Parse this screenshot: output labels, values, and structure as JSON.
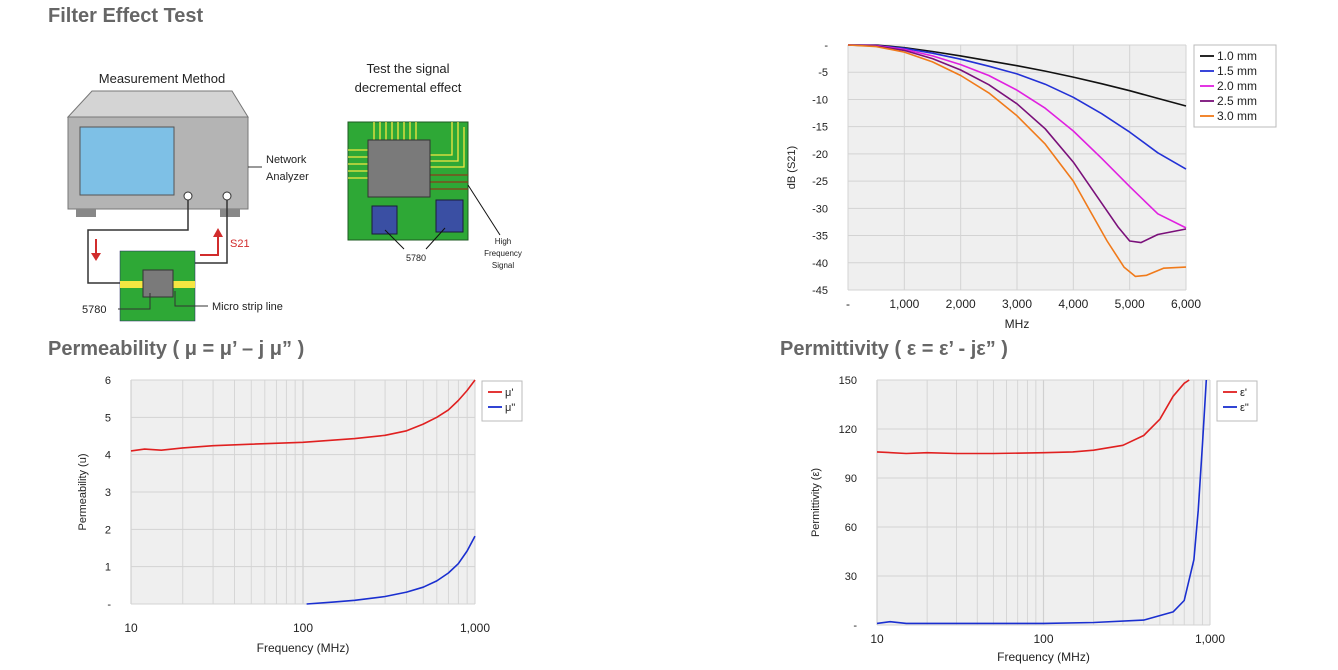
{
  "page": {
    "title": "Filter Effect Test",
    "permeability_title": "Permeability ( μ = μ’ – j μ” )",
    "permittivity_title": "Permittivity ( ε = ε’ - jε” )"
  },
  "diagram": {
    "measurement_label": "Measurement Method",
    "analyzer_label_1": "Network",
    "analyzer_label_2": "Analyzer",
    "s21_label": "S21",
    "part_label": "5780",
    "microstrip_label": "Micro strip line",
    "test_title_1": "Test the signal",
    "test_title_2": "decremental effect",
    "pcb_part_label": "5780",
    "hf_label_1": "High",
    "hf_label_2": "Frequency",
    "hf_label_3": "Signal",
    "colors": {
      "pcb": "#2ea836",
      "trace": "#f5e642",
      "chip": "#7a7a7a",
      "part": "#3a4fa3",
      "arrow": "#d12c2c",
      "screen": "#7ec0e6",
      "case": "#b4b4b4"
    }
  },
  "chart_data": [
    {
      "type": "line",
      "xlabel": "MHz",
      "ylabel": "dB (S21)",
      "xlim": [
        0,
        6000
      ],
      "ylim": [
        -45,
        0
      ],
      "x_ticks": [
        "-",
        "1,000",
        "2,000",
        "3,000",
        "4,000",
        "5,000",
        "6,000"
      ],
      "y_ticks": [
        "-",
        "-5",
        "-10",
        "-15",
        "-20",
        "-25",
        "-30",
        "-35",
        "-40",
        "-45"
      ],
      "grid": true,
      "legend": "top-right",
      "series": [
        {
          "name": "1.0 mm",
          "color": "#111111",
          "x": [
            0,
            500,
            1000,
            1500,
            2000,
            2500,
            3000,
            3500,
            4000,
            4500,
            5000,
            5500,
            6000
          ],
          "y": [
            0,
            0,
            -0.5,
            -1.2,
            -2.0,
            -2.9,
            -3.8,
            -4.8,
            -5.9,
            -7.1,
            -8.4,
            -9.8,
            -11.2
          ]
        },
        {
          "name": "1.5 mm",
          "color": "#2331d6",
          "x": [
            0,
            500,
            1000,
            1500,
            2000,
            2500,
            3000,
            3500,
            4000,
            4500,
            5000,
            5500,
            6000
          ],
          "y": [
            0,
            -0.1,
            -0.6,
            -1.5,
            -2.6,
            -3.9,
            -5.3,
            -7.2,
            -9.6,
            -12.6,
            -16.0,
            -19.8,
            -22.8
          ]
        },
        {
          "name": "2.0 mm",
          "color": "#e020e0",
          "x": [
            0,
            500,
            1000,
            1500,
            2000,
            2500,
            3000,
            3500,
            4000,
            4500,
            5000,
            5500,
            6000
          ],
          "y": [
            0,
            -0.1,
            -0.8,
            -2.0,
            -3.6,
            -5.6,
            -8.3,
            -11.6,
            -15.8,
            -20.8,
            -26.0,
            -31.0,
            -33.6
          ]
        },
        {
          "name": "2.5 mm",
          "color": "#7a107a",
          "x": [
            0,
            500,
            1000,
            1500,
            2000,
            2500,
            3000,
            3500,
            4000,
            4500,
            4800,
            5000,
            5200,
            5500,
            6000
          ],
          "y": [
            0,
            -0.2,
            -1.0,
            -2.5,
            -4.6,
            -7.3,
            -10.8,
            -15.4,
            -21.5,
            -29.0,
            -33.5,
            -36.0,
            -36.3,
            -34.8,
            -33.8
          ]
        },
        {
          "name": "3.0 mm",
          "color": "#f07a1a",
          "x": [
            0,
            500,
            1000,
            1500,
            2000,
            2500,
            3000,
            3500,
            4000,
            4300,
            4600,
            4900,
            5100,
            5300,
            5600,
            6000
          ],
          "y": [
            0,
            -0.3,
            -1.3,
            -3.1,
            -5.6,
            -8.8,
            -13.0,
            -18.2,
            -25.0,
            -30.5,
            -36.0,
            -40.8,
            -42.5,
            -42.3,
            -41.0,
            -40.8
          ]
        }
      ]
    },
    {
      "type": "line",
      "xlabel": "Frequency (MHz)",
      "ylabel": "Permeability (u)",
      "x_scale": "log",
      "xlim": [
        10,
        1000
      ],
      "ylim": [
        0,
        6
      ],
      "x_ticks": [
        "10",
        "100",
        "1,000"
      ],
      "y_ticks": [
        "6",
        "5",
        "4",
        "3",
        "2",
        "1",
        "-"
      ],
      "grid": true,
      "legend": "top-right",
      "series": [
        {
          "name": "μ'",
          "color": "#e02020",
          "x": [
            10,
            12,
            15,
            20,
            30,
            50,
            100,
            200,
            300,
            400,
            500,
            600,
            700,
            800,
            900,
            1000
          ],
          "y": [
            4.1,
            4.15,
            4.12,
            4.18,
            4.24,
            4.28,
            4.33,
            4.43,
            4.52,
            4.64,
            4.82,
            5.0,
            5.2,
            5.45,
            5.72,
            6.0
          ]
        },
        {
          "name": "μ\"",
          "color": "#1a2fd0",
          "x": [
            105,
            150,
            200,
            300,
            400,
            500,
            600,
            700,
            800,
            900,
            1000
          ],
          "y": [
            0,
            0.05,
            0.1,
            0.2,
            0.32,
            0.45,
            0.62,
            0.83,
            1.08,
            1.42,
            1.82
          ]
        }
      ]
    },
    {
      "type": "line",
      "xlabel": "Frequency (MHz)",
      "ylabel": "Permittivity (ε)",
      "x_scale": "log",
      "xlim": [
        10,
        1000
      ],
      "ylim": [
        0,
        150
      ],
      "x_ticks": [
        "10",
        "100",
        "1,000"
      ],
      "y_ticks": [
        "150",
        "120",
        "90",
        "60",
        "30",
        "-"
      ],
      "grid": true,
      "legend": "top-right",
      "series": [
        {
          "name": "ε'",
          "color": "#e02020",
          "x": [
            10,
            15,
            20,
            30,
            50,
            100,
            150,
            200,
            300,
            400,
            500,
            600,
            700,
            750
          ],
          "y": [
            106,
            105,
            105.5,
            105,
            105,
            105.5,
            106,
            107,
            110,
            116,
            126,
            140,
            148,
            150
          ]
        },
        {
          "name": "ε\"",
          "color": "#1a2fd0",
          "x": [
            10,
            12,
            15,
            20,
            30,
            50,
            100,
            200,
            400,
            600,
            700,
            800,
            850,
            900,
            950
          ],
          "y": [
            1,
            2,
            1,
            1,
            1,
            1,
            1,
            1.5,
            3,
            8,
            15,
            40,
            70,
            110,
            150
          ]
        }
      ]
    }
  ]
}
